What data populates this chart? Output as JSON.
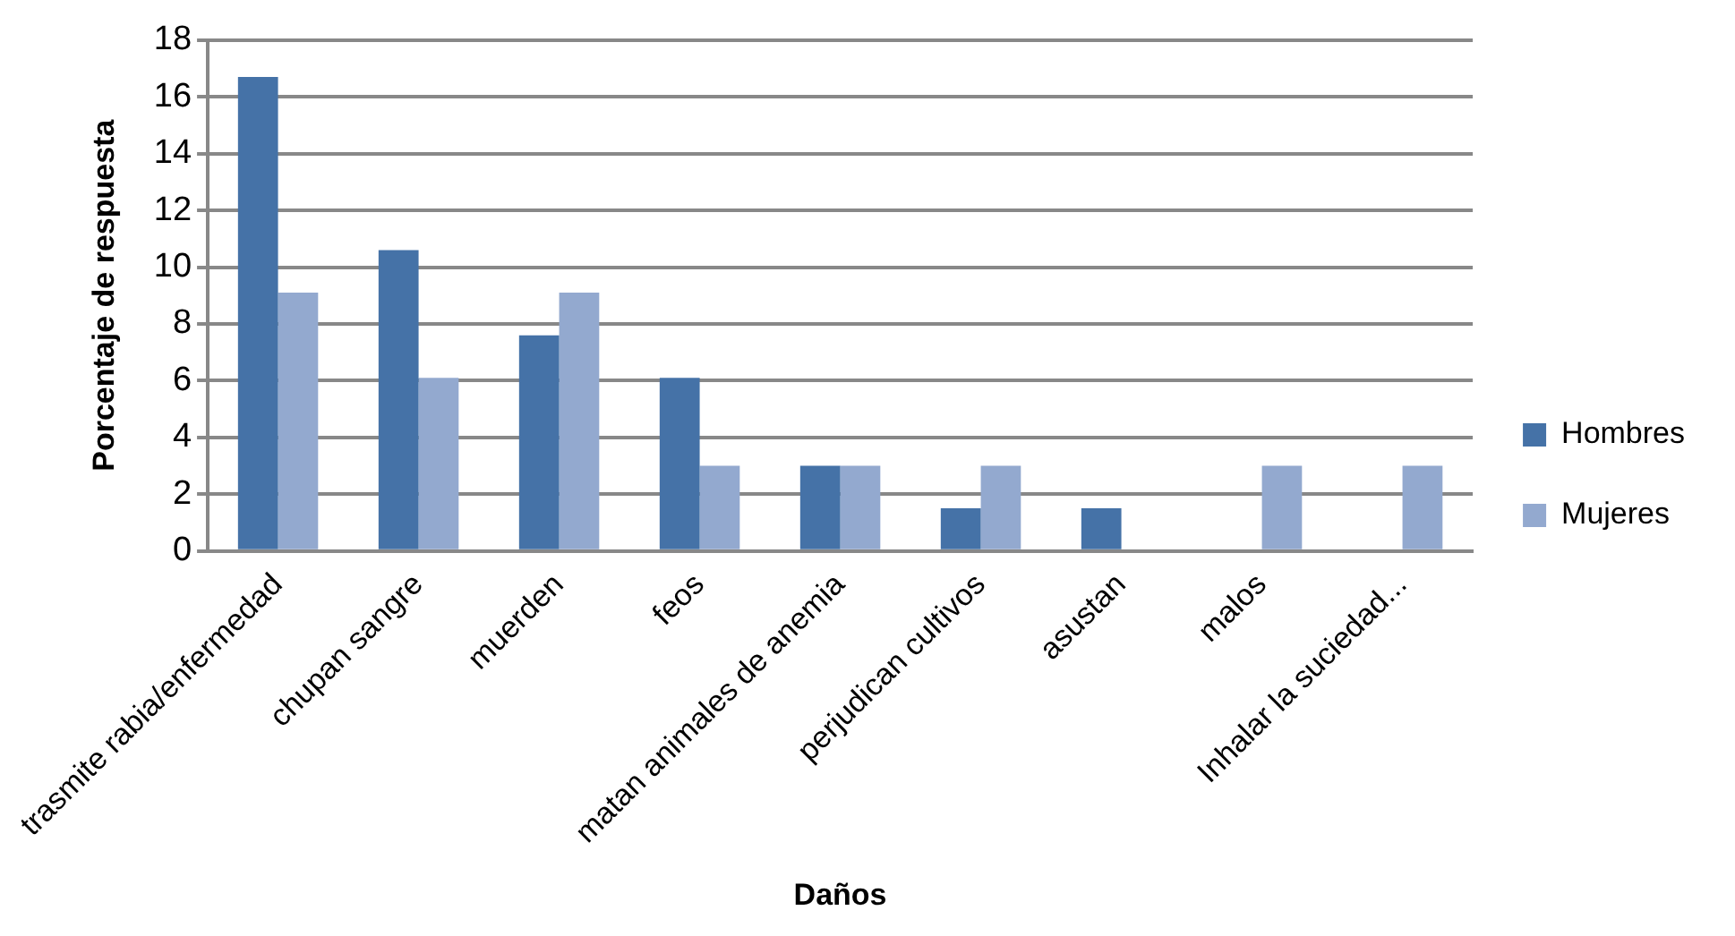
{
  "chart_data": {
    "type": "bar",
    "xlabel": "Daños",
    "ylabel": "Porcentaje de respuesta",
    "categories": [
      "trasmite rabia/enfermedad",
      "chupan sangre",
      "muerden",
      "feos",
      "matan animales de anemia",
      "perjudican cultivos",
      "asustan",
      "malos",
      "Inhalar la suciedad..."
    ],
    "series": [
      {
        "name": "Hombres",
        "color": "#4572a7",
        "values": [
          16.7,
          10.6,
          7.6,
          6.1,
          3.0,
          1.5,
          1.5,
          0,
          0
        ]
      },
      {
        "name": "Mujeres",
        "color": "#93a9cf",
        "values": [
          9.1,
          6.1,
          9.1,
          3.0,
          3.0,
          3.0,
          0,
          3.0,
          3.0
        ]
      }
    ],
    "ylim": [
      0,
      18
    ],
    "yticks": [
      0,
      2,
      4,
      6,
      8,
      10,
      12,
      14,
      16,
      18
    ],
    "grid": "y",
    "legend": "right"
  }
}
